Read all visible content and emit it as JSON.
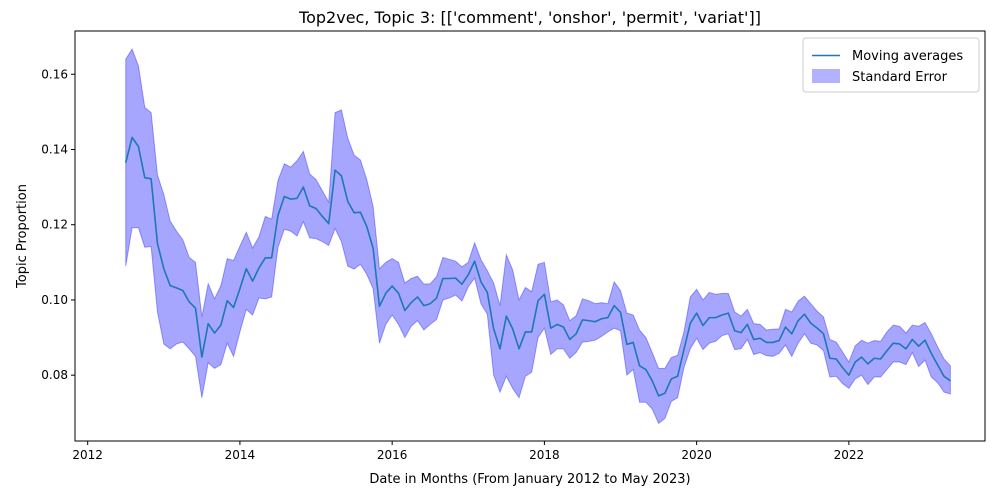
{
  "chart_data": {
    "type": "line",
    "title": "Top2vec, Topic 3: [['comment', 'onshor', 'permit', 'variat']]",
    "xlabel": "Date in Months (From January 2012 to May 2023)",
    "ylabel": "Topic Proportion",
    "xlim": [
      "2011-11-01",
      "2023-10-15"
    ],
    "ylim": [
      0.0625,
      0.1715
    ],
    "x_ticks": [
      {
        "value": "2012-01-01",
        "label": "2012"
      },
      {
        "value": "2014-01-01",
        "label": "2014"
      },
      {
        "value": "2016-01-01",
        "label": "2016"
      },
      {
        "value": "2018-01-01",
        "label": "2018"
      },
      {
        "value": "2020-01-01",
        "label": "2020"
      },
      {
        "value": "2022-01-01",
        "label": "2022"
      }
    ],
    "y_ticks": [
      {
        "value": 0.08,
        "label": "0.08"
      },
      {
        "value": 0.1,
        "label": "0.10"
      },
      {
        "value": 0.12,
        "label": "0.12"
      },
      {
        "value": 0.14,
        "label": "0.14"
      },
      {
        "value": 0.16,
        "label": "0.16"
      }
    ],
    "grid": false,
    "legend_position": "top-right",
    "colors": {
      "line": "#1f77b4",
      "band": "#0000ff",
      "band_opacity": 0.35
    },
    "x": [
      "2012-07",
      "2012-08",
      "2012-09",
      "2012-10",
      "2012-11",
      "2012-12",
      "2013-01",
      "2013-02",
      "2013-03",
      "2013-04",
      "2013-05",
      "2013-06",
      "2013-07",
      "2013-08",
      "2013-09",
      "2013-10",
      "2013-11",
      "2013-12",
      "2014-01",
      "2014-02",
      "2014-03",
      "2014-04",
      "2014-05",
      "2014-06",
      "2014-07",
      "2014-08",
      "2014-09",
      "2014-10",
      "2014-11",
      "2014-12",
      "2015-01",
      "2015-02",
      "2015-03",
      "2015-04",
      "2015-05",
      "2015-06",
      "2015-07",
      "2015-08",
      "2015-09",
      "2015-10",
      "2015-11",
      "2015-12",
      "2016-01",
      "2016-02",
      "2016-03",
      "2016-04",
      "2016-05",
      "2016-06",
      "2016-07",
      "2016-08",
      "2016-09",
      "2016-10",
      "2016-11",
      "2016-12",
      "2017-01",
      "2017-02",
      "2017-03",
      "2017-04",
      "2017-05",
      "2017-06",
      "2017-07",
      "2017-08",
      "2017-09",
      "2017-10",
      "2017-11",
      "2017-12",
      "2018-01",
      "2018-02",
      "2018-03",
      "2018-04",
      "2018-05",
      "2018-06",
      "2018-07",
      "2018-08",
      "2018-09",
      "2018-10",
      "2018-11",
      "2018-12",
      "2019-01",
      "2019-02",
      "2019-03",
      "2019-04",
      "2019-05",
      "2019-06",
      "2019-07",
      "2019-08",
      "2019-09",
      "2019-10",
      "2019-11",
      "2019-12",
      "2020-01",
      "2020-02",
      "2020-03",
      "2020-04",
      "2020-05",
      "2020-06",
      "2020-07",
      "2020-08",
      "2020-09",
      "2020-10",
      "2020-11",
      "2020-12",
      "2021-01",
      "2021-02",
      "2021-03",
      "2021-04",
      "2021-05",
      "2021-06",
      "2021-07",
      "2021-08",
      "2021-09",
      "2021-10",
      "2021-11",
      "2021-12",
      "2022-01",
      "2022-02",
      "2022-03",
      "2022-04",
      "2022-05",
      "2022-06",
      "2022-07",
      "2022-08",
      "2022-09",
      "2022-10",
      "2022-11",
      "2022-12",
      "2023-01",
      "2023-02",
      "2023-03",
      "2023-04",
      "2023-05"
    ],
    "series": [
      {
        "name": "Moving averages",
        "values": [
          0.1365,
          0.1432,
          0.1408,
          0.1325,
          0.1322,
          0.115,
          0.1083,
          0.1038,
          0.1032,
          0.1025,
          0.0995,
          0.0978,
          0.0848,
          0.0937,
          0.0912,
          0.0933,
          0.0998,
          0.098,
          0.103,
          0.1083,
          0.105,
          0.1085,
          0.1112,
          0.1112,
          0.1225,
          0.1275,
          0.1268,
          0.127,
          0.13,
          0.125,
          0.1243,
          0.1222,
          0.1203,
          0.1345,
          0.133,
          0.1262,
          0.1232,
          0.1233,
          0.1195,
          0.1137,
          0.0983,
          0.1018,
          0.1037,
          0.1018,
          0.0972,
          0.0993,
          0.1008,
          0.0985,
          0.099,
          0.1005,
          0.1057,
          0.1057,
          0.1058,
          0.1042,
          0.1067,
          0.1103,
          0.1048,
          0.102,
          0.0923,
          0.087,
          0.0957,
          0.0923,
          0.087,
          0.0915,
          0.0915,
          0.0998,
          0.1015,
          0.0925,
          0.0935,
          0.0928,
          0.0895,
          0.091,
          0.0947,
          0.0945,
          0.0942,
          0.095,
          0.0953,
          0.0985,
          0.0967,
          0.0882,
          0.0887,
          0.0825,
          0.0815,
          0.0785,
          0.0745,
          0.0752,
          0.079,
          0.0797,
          0.0868,
          0.0938,
          0.0965,
          0.0932,
          0.0953,
          0.0953,
          0.096,
          0.0965,
          0.0918,
          0.0913,
          0.0935,
          0.0895,
          0.0898,
          0.0887,
          0.0887,
          0.0892,
          0.0928,
          0.091,
          0.0945,
          0.0962,
          0.0938,
          0.0925,
          0.091,
          0.0845,
          0.0843,
          0.082,
          0.08,
          0.0835,
          0.0848,
          0.083,
          0.0845,
          0.0843,
          0.0865,
          0.0885,
          0.0883,
          0.087,
          0.0895,
          0.0877,
          0.0893,
          0.0858,
          0.0827,
          0.0797,
          0.0785
        ]
      },
      {
        "name": "Standard Error",
        "lower": [
          0.109,
          0.1192,
          0.1192,
          0.114,
          0.1142,
          0.0968,
          0.0883,
          0.087,
          0.0883,
          0.0888,
          0.087,
          0.085,
          0.074,
          0.0833,
          0.0818,
          0.0828,
          0.0885,
          0.085,
          0.0915,
          0.0975,
          0.096,
          0.1005,
          0.1003,
          0.1008,
          0.114,
          0.1188,
          0.1183,
          0.117,
          0.1208,
          0.1165,
          0.1163,
          0.1155,
          0.1145,
          0.119,
          0.1155,
          0.109,
          0.1082,
          0.1095,
          0.1068,
          0.103,
          0.0885,
          0.0935,
          0.096,
          0.0935,
          0.09,
          0.093,
          0.0945,
          0.092,
          0.0935,
          0.0948,
          0.1,
          0.1005,
          0.1013,
          0.0997,
          0.1035,
          0.1058,
          0.099,
          0.0962,
          0.08,
          0.0755,
          0.0797,
          0.0765,
          0.074,
          0.0797,
          0.0808,
          0.09,
          0.0925,
          0.0855,
          0.087,
          0.087,
          0.0845,
          0.086,
          0.0888,
          0.089,
          0.0893,
          0.0903,
          0.0915,
          0.0925,
          0.0918,
          0.08,
          0.0815,
          0.0728,
          0.0728,
          0.071,
          0.0672,
          0.0685,
          0.073,
          0.074,
          0.082,
          0.087,
          0.0898,
          0.0868,
          0.0885,
          0.089,
          0.0905,
          0.091,
          0.0868,
          0.087,
          0.0895,
          0.0855,
          0.086,
          0.0852,
          0.085,
          0.0858,
          0.088,
          0.085,
          0.0885,
          0.091,
          0.0885,
          0.088,
          0.0865,
          0.0795,
          0.0797,
          0.0778,
          0.0765,
          0.079,
          0.08,
          0.0775,
          0.0795,
          0.0795,
          0.0815,
          0.0835,
          0.0835,
          0.0828,
          0.086,
          0.0823,
          0.084,
          0.0795,
          0.078,
          0.0755,
          0.075
        ],
        "upper": [
          0.164,
          0.1667,
          0.1622,
          0.1512,
          0.1498,
          0.1332,
          0.128,
          0.121,
          0.1183,
          0.116,
          0.1113,
          0.11,
          0.0955,
          0.1043,
          0.1003,
          0.1038,
          0.111,
          0.1105,
          0.1143,
          0.118,
          0.1138,
          0.1168,
          0.1222,
          0.1215,
          0.1318,
          0.1362,
          0.1353,
          0.137,
          0.1395,
          0.1335,
          0.132,
          0.129,
          0.126,
          0.1498,
          0.1505,
          0.143,
          0.1385,
          0.1372,
          0.132,
          0.1248,
          0.1083,
          0.11,
          0.111,
          0.11,
          0.1045,
          0.1057,
          0.1063,
          0.1042,
          0.1043,
          0.1062,
          0.1113,
          0.1108,
          0.1103,
          0.1088,
          0.11,
          0.1152,
          0.1107,
          0.1078,
          0.1045,
          0.0985,
          0.112,
          0.108,
          0.1,
          0.1033,
          0.1022,
          0.1095,
          0.11,
          0.0995,
          0.1,
          0.0987,
          0.0945,
          0.0958,
          0.1003,
          0.0998,
          0.099,
          0.0993,
          0.099,
          0.1048,
          0.1025,
          0.0965,
          0.096,
          0.092,
          0.09,
          0.086,
          0.0818,
          0.0818,
          0.0847,
          0.0853,
          0.0915,
          0.1008,
          0.1028,
          0.1,
          0.102,
          0.1015,
          0.1017,
          0.1017,
          0.0968,
          0.0957,
          0.0975,
          0.0937,
          0.0935,
          0.092,
          0.0922,
          0.0923,
          0.0975,
          0.0968,
          0.0997,
          0.101,
          0.099,
          0.097,
          0.0955,
          0.0895,
          0.0888,
          0.0862,
          0.0835,
          0.0878,
          0.0893,
          0.0885,
          0.0892,
          0.089,
          0.0915,
          0.0933,
          0.093,
          0.0912,
          0.0933,
          0.093,
          0.094,
          0.091,
          0.0875,
          0.0843,
          0.0825
        ]
      }
    ]
  }
}
